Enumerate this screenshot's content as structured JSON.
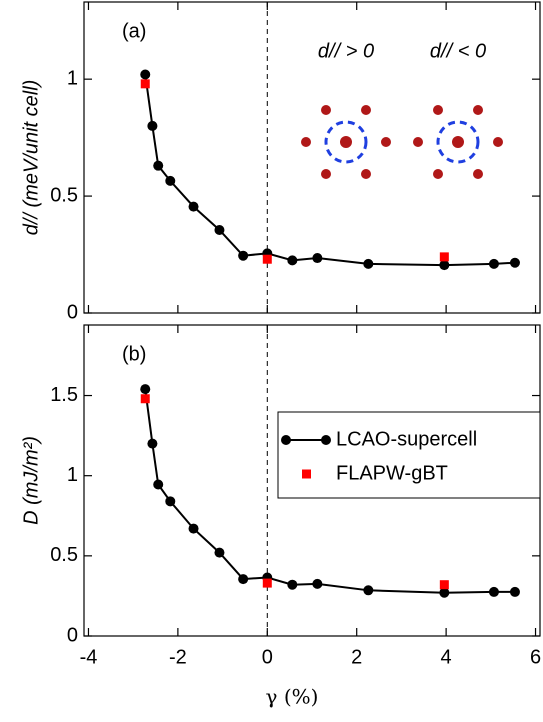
{
  "chart_data": [
    {
      "type": "line",
      "panel_label": "(a)",
      "ylabel": "d// (meV/unit cell)",
      "annotations": [
        "d// > 0",
        "d// < 0"
      ],
      "xlim": [
        -4.1,
        6.1
      ],
      "xticks": [
        -4,
        -2,
        0,
        2,
        4,
        6
      ],
      "xtick_labels": false,
      "ylim": [
        0,
        1.33
      ],
      "yticks": [
        0,
        0.5,
        1
      ],
      "vline": 0,
      "series": [
        {
          "name": "LCAO-supercell",
          "color": "#000000",
          "marker": "circle",
          "x": [
            -2.73,
            -2.57,
            -2.44,
            -2.17,
            -1.65,
            -1.07,
            -0.54,
            0,
            0.56,
            1.12,
            2.26,
            3.96,
            5.07,
            5.54
          ],
          "values": [
            1.02,
            0.8,
            0.63,
            0.565,
            0.455,
            0.355,
            0.245,
            0.255,
            0.225,
            0.235,
            0.21,
            0.205,
            0.21,
            0.215
          ]
        },
        {
          "name": "FLAPW-gBT",
          "color": "#ff0000",
          "marker": "square",
          "x": [
            -2.73,
            0,
            3.96
          ],
          "values": [
            0.98,
            0.23,
            0.24
          ]
        }
      ]
    },
    {
      "type": "line",
      "panel_label": "(b)",
      "ylabel": "D (mJ/m²)",
      "xlabel": "γ (%)",
      "xlim": [
        -4.1,
        6.1
      ],
      "xticks": [
        -4,
        -2,
        0,
        2,
        4,
        6
      ],
      "xtick_labels": true,
      "ylim": [
        0,
        1.94
      ],
      "yticks": [
        0,
        0.5,
        1,
        1.5
      ],
      "vline": 0,
      "legend": "right",
      "series": [
        {
          "name": "LCAO-supercell",
          "color": "#000000",
          "marker": "circle",
          "x": [
            -2.73,
            -2.57,
            -2.44,
            -2.17,
            -1.65,
            -1.07,
            -0.54,
            0,
            0.56,
            1.12,
            2.26,
            3.96,
            5.07,
            5.54
          ],
          "values": [
            1.54,
            1.2,
            0.945,
            0.84,
            0.67,
            0.52,
            0.355,
            0.365,
            0.32,
            0.325,
            0.285,
            0.27,
            0.275,
            0.275
          ]
        },
        {
          "name": "FLAPW-gBT",
          "color": "#ff0000",
          "marker": "square",
          "x": [
            -2.73,
            0,
            3.96
          ],
          "values": [
            1.48,
            0.33,
            0.32
          ]
        }
      ]
    }
  ]
}
